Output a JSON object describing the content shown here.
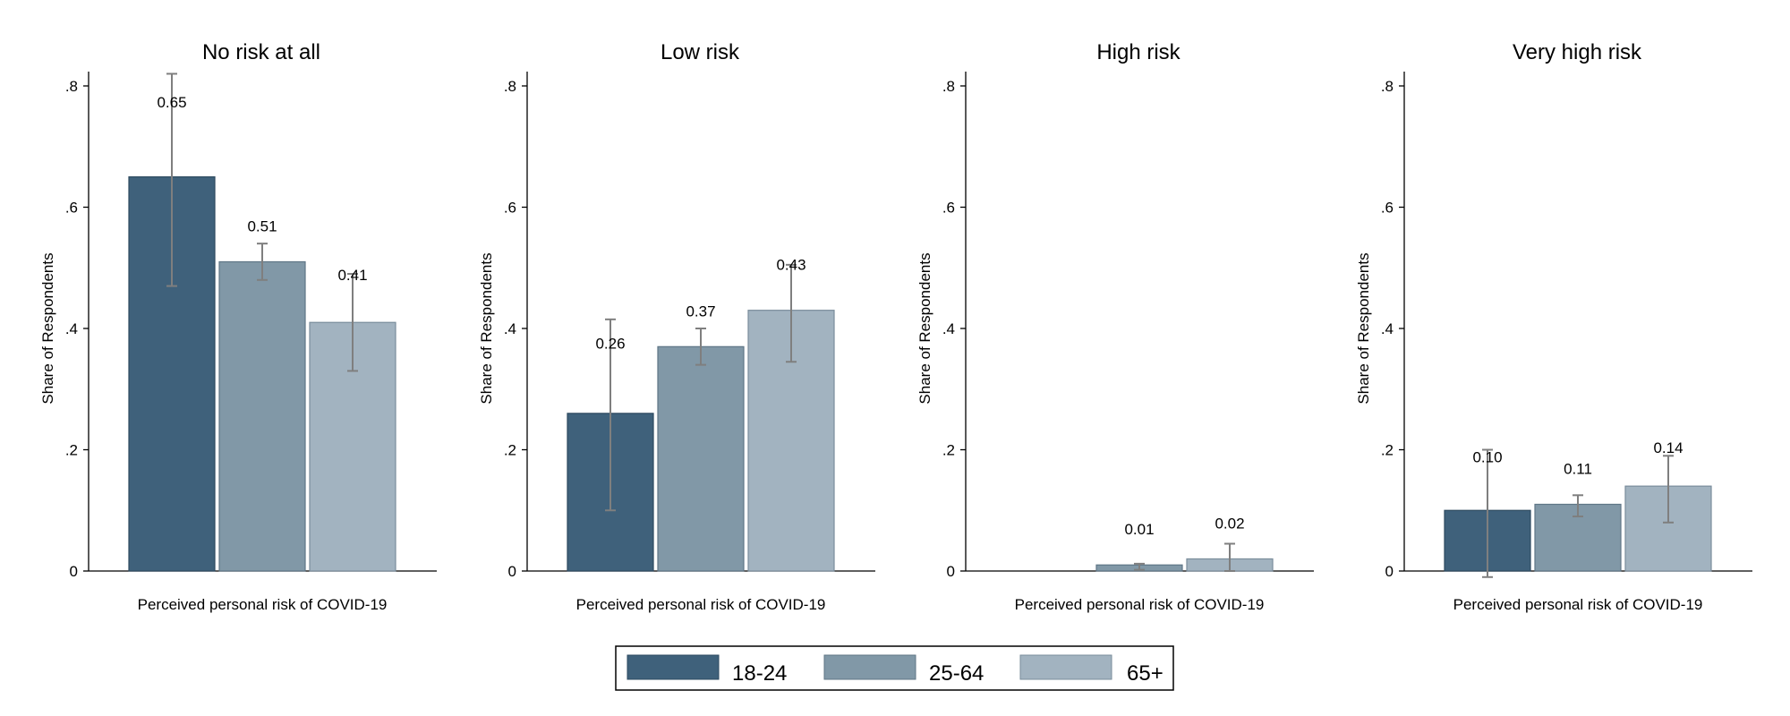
{
  "legend": {
    "entries": [
      {
        "label": "18-24",
        "color": "#3f617b"
      },
      {
        "label": "25-64",
        "color": "#8198a7"
      },
      {
        "label": "65+",
        "color": "#a2b3c0"
      }
    ]
  },
  "chart_data": [
    {
      "type": "bar",
      "title": "No risk at all",
      "xlabel": "Perceived personal risk of COVID-19",
      "ylabel": "Share of Respondents",
      "ylim": [
        0,
        0.8
      ],
      "yticks": [
        0,
        0.2,
        0.4,
        0.6,
        0.8
      ],
      "ytick_labels": [
        "0",
        ".2",
        ".4",
        ".6",
        ".8"
      ],
      "grid": false,
      "series": [
        {
          "name": "18-24",
          "value": 0.65,
          "label": "0.65",
          "ci": [
            0.47,
            0.82
          ]
        },
        {
          "name": "25-64",
          "value": 0.51,
          "label": "0.51",
          "ci": [
            0.48,
            0.54
          ]
        },
        {
          "name": "65+",
          "value": 0.41,
          "label": "0.41",
          "ci": [
            0.33,
            0.49
          ]
        }
      ]
    },
    {
      "type": "bar",
      "title": "Low risk",
      "xlabel": "Perceived personal risk of COVID-19",
      "ylabel": "Share of Respondents",
      "ylim": [
        0,
        0.8
      ],
      "yticks": [
        0,
        0.2,
        0.4,
        0.6,
        0.8
      ],
      "ytick_labels": [
        "0",
        ".2",
        ".4",
        ".6",
        ".8"
      ],
      "grid": false,
      "series": [
        {
          "name": "18-24",
          "value": 0.26,
          "label": "0.26",
          "ci": [
            0.1,
            0.415
          ]
        },
        {
          "name": "25-64",
          "value": 0.37,
          "label": "0.37",
          "ci": [
            0.34,
            0.4
          ]
        },
        {
          "name": "65+",
          "value": 0.43,
          "label": "0.43",
          "ci": [
            0.345,
            0.505
          ]
        }
      ]
    },
    {
      "type": "bar",
      "title": "High risk",
      "xlabel": "Perceived personal risk of COVID-19",
      "ylabel": "Share of Respondents",
      "ylim": [
        0,
        0.8
      ],
      "yticks": [
        0,
        0.2,
        0.4,
        0.6,
        0.8
      ],
      "ytick_labels": [
        "0",
        ".2",
        ".4",
        ".6",
        ".8"
      ],
      "grid": false,
      "series": [
        {
          "name": "18-24",
          "value": 0,
          "label": "",
          "ci": null
        },
        {
          "name": "25-64",
          "value": 0.01,
          "label": "0.01",
          "ci": [
            0.002,
            0.012
          ]
        },
        {
          "name": "65+",
          "value": 0.02,
          "label": "0.02",
          "ci": [
            0.0,
            0.045
          ]
        }
      ]
    },
    {
      "type": "bar",
      "title": "Very high risk",
      "xlabel": "Perceived personal risk of COVID-19",
      "ylabel": "Share of Respondents",
      "ylim": [
        0,
        0.8
      ],
      "yticks": [
        0,
        0.2,
        0.4,
        0.6,
        0.8
      ],
      "ytick_labels": [
        "0",
        ".2",
        ".4",
        ".6",
        ".8"
      ],
      "grid": false,
      "series": [
        {
          "name": "18-24",
          "value": 0.1,
          "label": "0.10",
          "ci": [
            -0.01,
            0.2
          ]
        },
        {
          "name": "25-64",
          "value": 0.11,
          "label": "0.11",
          "ci": [
            0.09,
            0.125
          ]
        },
        {
          "name": "65+",
          "value": 0.14,
          "label": "0.14",
          "ci": [
            0.08,
            0.19
          ]
        }
      ]
    }
  ]
}
